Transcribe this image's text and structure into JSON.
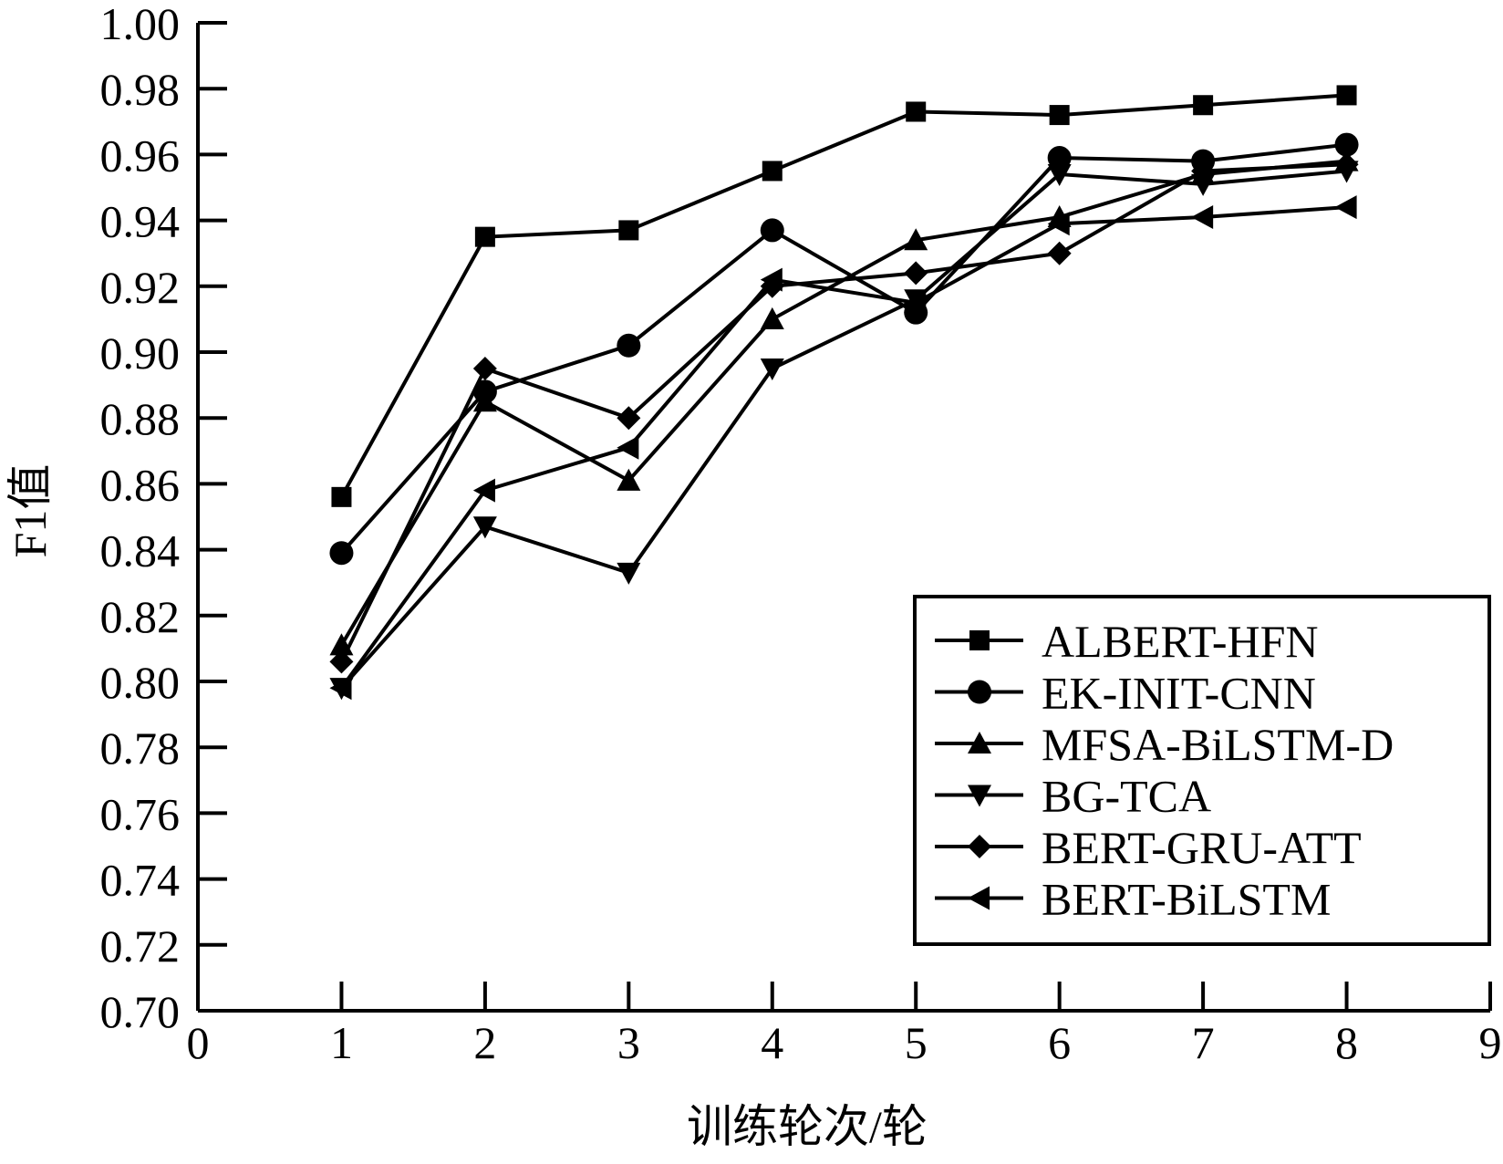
{
  "chart_data": {
    "type": "line",
    "title": "",
    "xlabel": "训练轮次/轮",
    "ylabel": "F1值",
    "xlim": [
      0,
      9
    ],
    "ylim": [
      0.7,
      1.0
    ],
    "x_ticks": [
      0,
      1,
      2,
      3,
      4,
      5,
      6,
      7,
      8,
      9
    ],
    "y_ticks": [
      0.7,
      0.72,
      0.74,
      0.76,
      0.78,
      0.8,
      0.82,
      0.84,
      0.86,
      0.88,
      0.9,
      0.92,
      0.94,
      0.96,
      0.98,
      1.0
    ],
    "x_tick_labels": [
      "0",
      "1",
      "2",
      "3",
      "4",
      "5",
      "6",
      "7",
      "8",
      "9"
    ],
    "y_tick_labels": [
      "0.70",
      "0.72",
      "0.74",
      "0.76",
      "0.78",
      "0.80",
      "0.82",
      "0.84",
      "0.86",
      "0.88",
      "0.90",
      "0.92",
      "0.94",
      "0.96",
      "0.98",
      "1.00"
    ],
    "grid": false,
    "legend_position": "bottom-right",
    "x": [
      1,
      2,
      3,
      4,
      5,
      6,
      7,
      8
    ],
    "series": [
      {
        "name": "ALBERT-HFN",
        "marker": "square",
        "values": [
          0.856,
          0.935,
          0.937,
          0.955,
          0.973,
          0.972,
          0.975,
          0.978
        ]
      },
      {
        "name": "EK-INIT-CNN",
        "marker": "circle",
        "values": [
          0.839,
          0.888,
          0.902,
          0.937,
          0.912,
          0.959,
          0.958,
          0.963
        ]
      },
      {
        "name": "MFSA-BiLSTM-D",
        "marker": "triangle-up",
        "values": [
          0.811,
          0.885,
          0.861,
          0.91,
          0.934,
          0.941,
          0.954,
          0.958
        ]
      },
      {
        "name": "BG-TCA",
        "marker": "triangle-down",
        "values": [
          0.798,
          0.847,
          0.833,
          0.895,
          0.916,
          0.954,
          0.951,
          0.955
        ]
      },
      {
        "name": "BERT-GRU-ATT",
        "marker": "diamond",
        "values": [
          0.806,
          0.895,
          0.88,
          0.92,
          0.924,
          0.93,
          0.955,
          0.957
        ]
      },
      {
        "name": "BERT-BiLSTM",
        "marker": "triangle-left",
        "values": [
          0.798,
          0.858,
          0.871,
          0.922,
          0.915,
          0.939,
          0.941,
          0.944
        ]
      }
    ],
    "colors": {
      "line": "#000000",
      "background": "#ffffff"
    }
  }
}
